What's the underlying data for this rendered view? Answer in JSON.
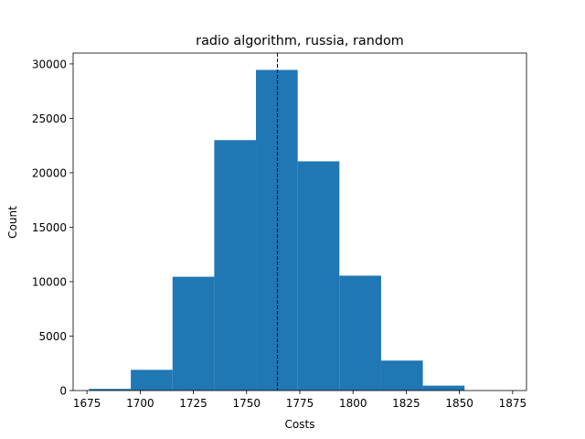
{
  "chart_data": {
    "type": "bar",
    "title": "radio algorithm, russia, random",
    "xlabel": "Costs",
    "ylabel": "Count",
    "xlim": [
      1668.5,
      1881.5
    ],
    "ylim": [
      0,
      31000
    ],
    "x_ticks": [
      1675,
      1700,
      1725,
      1750,
      1775,
      1800,
      1825,
      1850,
      1875
    ],
    "y_ticks": [
      0,
      5000,
      10000,
      15000,
      20000,
      25000,
      30000
    ],
    "bin_edges": [
      1676,
      1695.6,
      1715.2,
      1734.8,
      1754.4,
      1774.0,
      1793.6,
      1813.2,
      1832.8,
      1852.4,
      1872.0
    ],
    "values": [
      150,
      1900,
      10450,
      23000,
      29450,
      21050,
      10550,
      2750,
      450,
      0
    ],
    "bar_color": "#1f77b4",
    "vline": {
      "x": 1764.5,
      "style": "dashed",
      "color": "#000000"
    },
    "grid": false,
    "legend": "none"
  }
}
